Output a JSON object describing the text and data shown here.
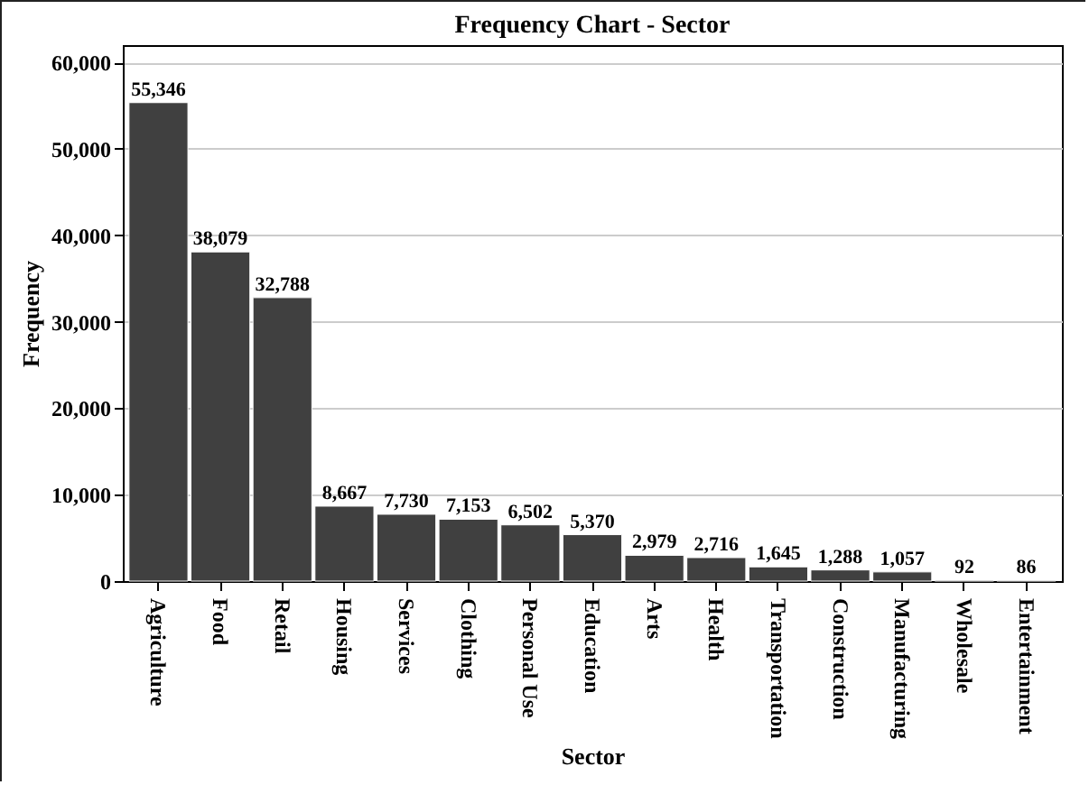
{
  "chart_data": {
    "type": "bar",
    "title": "Frequency Chart - Sector",
    "xlabel": "Sector",
    "ylabel": "Frequency",
    "categories": [
      "Agriculture",
      "Food",
      "Retail",
      "Housing",
      "Services",
      "Clothing",
      "Personal Use",
      "Education",
      "Arts",
      "Health",
      "Transportation",
      "Construction",
      "Manufacturing",
      "Wholesale",
      "Entertainment"
    ],
    "values": [
      55346,
      38079,
      32788,
      8667,
      7730,
      7153,
      6502,
      5370,
      2979,
      2716,
      1645,
      1288,
      1057,
      92,
      86
    ],
    "value_labels": [
      "55,346",
      "38,079",
      "32,788",
      "8,667",
      "7,730",
      "7,153",
      "6,502",
      "5,370",
      "2,979",
      "2,716",
      "1,645",
      "1,288",
      "1,057",
      "92",
      "86"
    ],
    "color": "#404040",
    "ylim": [
      0,
      62000
    ],
    "yticks": [
      0,
      {
        "value": 10000,
        "label": "10,000"
      },
      {
        "value": 20000,
        "label": "20,000"
      },
      {
        "value": 30000,
        "label": "30,000"
      },
      {
        "value": 40000,
        "label": "40,000"
      },
      {
        "value": 50000,
        "label": "50,000"
      },
      {
        "value": 60000,
        "label": "60,000"
      }
    ],
    "grid": "y"
  }
}
